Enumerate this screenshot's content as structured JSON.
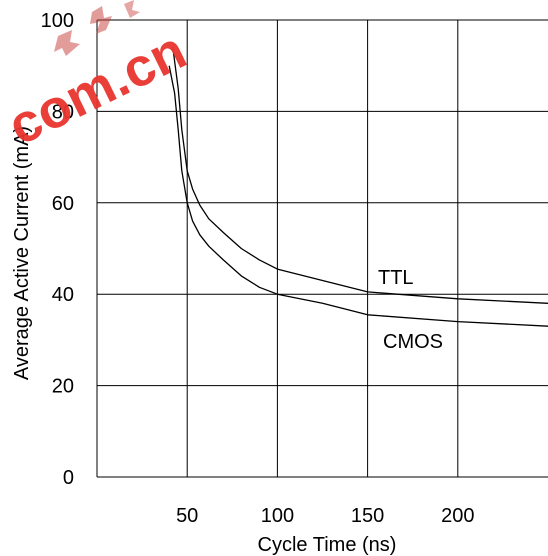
{
  "watermark": {
    "text": "com.cn",
    "color": "#e9352f"
  },
  "chart_data": {
    "type": "line",
    "xlabel": "Cycle Time (ns)",
    "ylabel": "Average Active Current (mA)",
    "xlim": [
      0,
      250
    ],
    "ylim": [
      0,
      100
    ],
    "x_ticks": [
      50,
      100,
      150,
      200
    ],
    "y_ticks": [
      0,
      20,
      40,
      60,
      80,
      100
    ],
    "grid": true,
    "series": [
      {
        "name": "TTL",
        "color": "#000000",
        "x": [
          42,
          45,
          47,
          50,
          53,
          57,
          62,
          70,
          80,
          90,
          100,
          125,
          150,
          200,
          250
        ],
        "y": [
          94,
          85,
          76,
          67,
          63,
          59.5,
          56.5,
          53.5,
          50,
          47.5,
          45.5,
          43,
          40.5,
          39,
          38
        ]
      },
      {
        "name": "CMOS",
        "color": "#000000",
        "x": [
          40,
          43,
          45,
          47,
          50,
          53,
          57,
          62,
          70,
          80,
          90,
          100,
          125,
          150,
          200,
          250
        ],
        "y": [
          90,
          84,
          76,
          67,
          60,
          56,
          53,
          50.5,
          47.5,
          44,
          41.5,
          40,
          38,
          35.5,
          34,
          33
        ]
      }
    ]
  }
}
